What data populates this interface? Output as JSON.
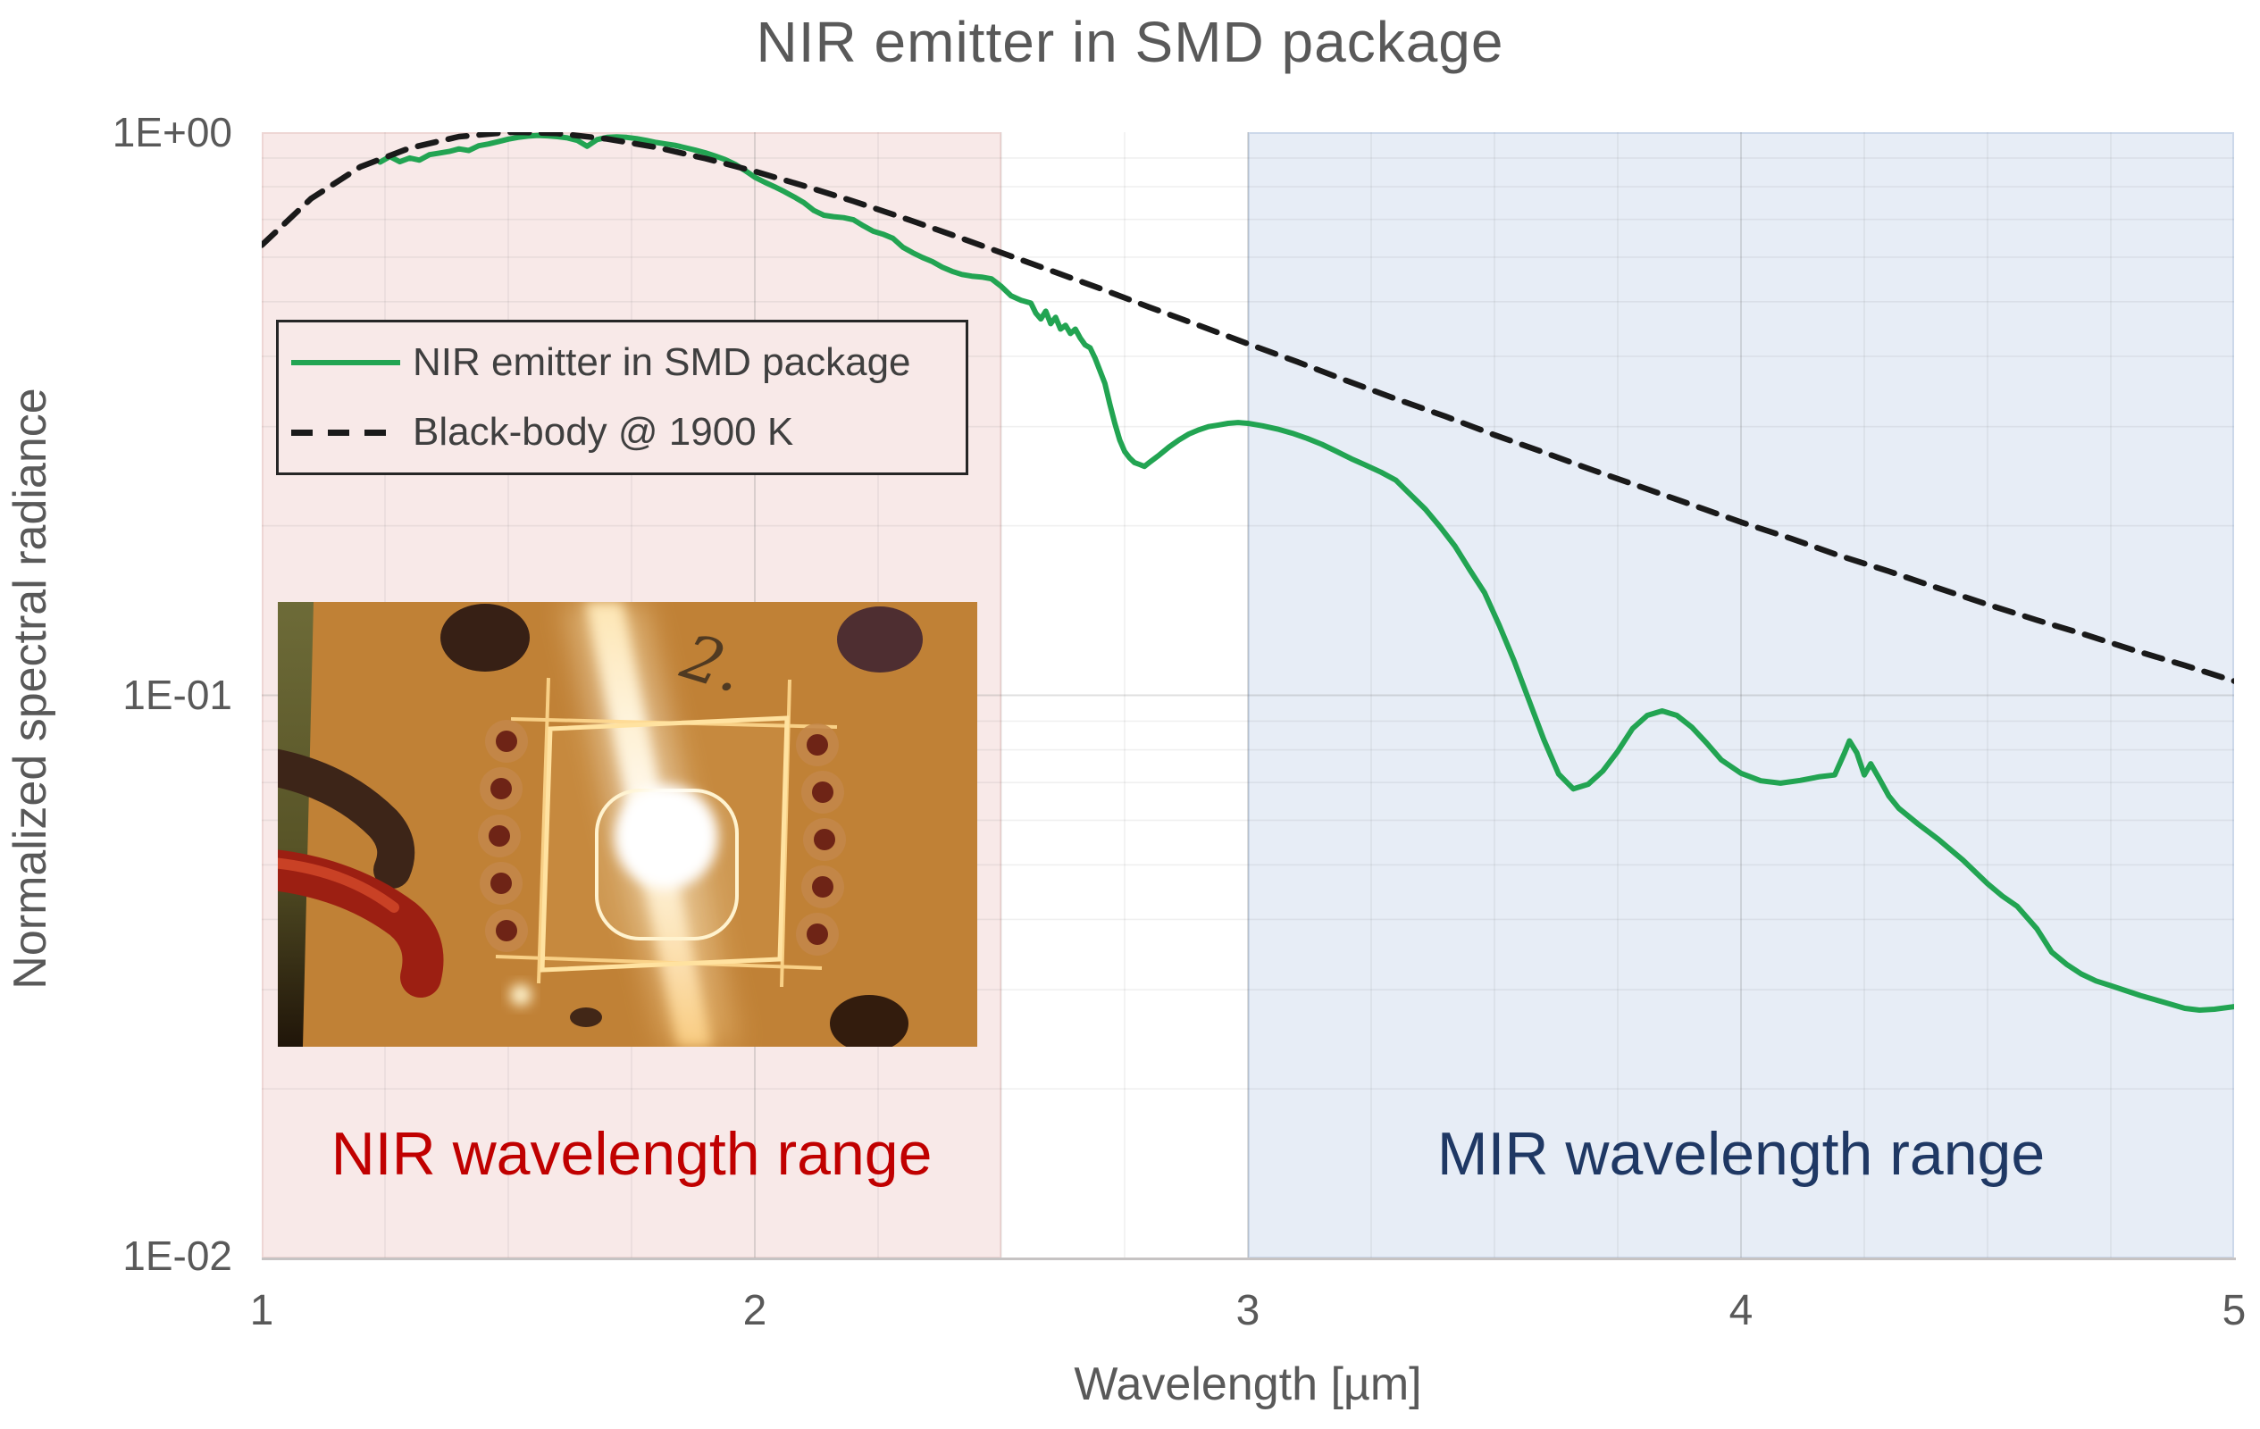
{
  "title": "NIR emitter in SMD package",
  "y_axis": {
    "title": "Normalized spectral radiance",
    "ticks": [
      "1E+00",
      "1E-01",
      "1E-02"
    ]
  },
  "x_axis": {
    "title": "Wavelength [µm]",
    "ticks": [
      "1",
      "2",
      "3",
      "4",
      "5"
    ]
  },
  "legend": {
    "items": [
      {
        "label": "NIR emitter in SMD package",
        "style": "solid",
        "color": "#22a452"
      },
      {
        "label": "Black-body @ 1900 K",
        "style": "dashed",
        "color": "#1a1a1a"
      }
    ]
  },
  "regions": {
    "nir": {
      "label": "NIR wavelength range",
      "x_range": [
        1.0,
        2.5
      ],
      "fill": "#f8e9e8",
      "label_color": "#c00000"
    },
    "mir": {
      "label": "MIR wavelength range",
      "x_range": [
        3.0,
        5.0
      ],
      "fill": "#e7edf6",
      "label_color": "#1f3864"
    }
  },
  "inset_photo": {
    "description": "Photograph of the glowing NIR emitter chip in its SMD package on a PCB, with a bright white-hot center, diagonal lens flare, scribe lines forming a square, solder pad rows, mounting holes and a red wire",
    "handwriting": "2."
  },
  "chart_data": {
    "type": "line",
    "title": "NIR emitter in SMD package",
    "xlabel": "Wavelength [µm]",
    "ylabel": "Normalized spectral radiance",
    "x_range": [
      1,
      5
    ],
    "y_scale": "log",
    "y_max": 1,
    "y_decades": 2,
    "ylim": [
      0.01,
      1.0
    ],
    "grid": {
      "x_minor_step": 0.25,
      "x_major": [
        2,
        3,
        4
      ],
      "minor_color": "rgba(110,110,110,0.10)",
      "major_color": "rgba(110,110,110,0.22)"
    },
    "annotations": [
      {
        "text": "NIR wavelength range",
        "x_range": [
          1.0,
          2.5
        ]
      },
      {
        "text": "MIR wavelength range",
        "x_range": [
          3.0,
          5.0
        ]
      }
    ],
    "series": [
      {
        "name": "NIR emitter in SMD package",
        "color": "#22a452",
        "style": "solid",
        "width": 6,
        "points": [
          [
            1.24,
            0.885
          ],
          [
            1.26,
            0.905
          ],
          [
            1.28,
            0.886
          ],
          [
            1.3,
            0.9
          ],
          [
            1.32,
            0.892
          ],
          [
            1.34,
            0.912
          ],
          [
            1.36,
            0.918
          ],
          [
            1.38,
            0.924
          ],
          [
            1.4,
            0.934
          ],
          [
            1.42,
            0.928
          ],
          [
            1.44,
            0.946
          ],
          [
            1.46,
            0.953
          ],
          [
            1.48,
            0.962
          ],
          [
            1.5,
            0.972
          ],
          [
            1.52,
            0.979
          ],
          [
            1.54,
            0.984
          ],
          [
            1.56,
            0.987
          ],
          [
            1.58,
            0.985
          ],
          [
            1.6,
            0.982
          ],
          [
            1.62,
            0.977
          ],
          [
            1.64,
            0.967
          ],
          [
            1.66,
            0.944
          ],
          [
            1.68,
            0.97
          ],
          [
            1.7,
            0.979
          ],
          [
            1.72,
            0.981
          ],
          [
            1.74,
            0.979
          ],
          [
            1.76,
            0.974
          ],
          [
            1.78,
            0.967
          ],
          [
            1.8,
            0.959
          ],
          [
            1.82,
            0.953
          ],
          [
            1.84,
            0.947
          ],
          [
            1.86,
            0.938
          ],
          [
            1.88,
            0.929
          ],
          [
            1.9,
            0.919
          ],
          [
            1.92,
            0.907
          ],
          [
            1.94,
            0.894
          ],
          [
            1.96,
            0.877
          ],
          [
            1.98,
            0.855
          ],
          [
            2.0,
            0.832
          ],
          [
            2.02,
            0.815
          ],
          [
            2.04,
            0.8
          ],
          [
            2.06,
            0.784
          ],
          [
            2.08,
            0.767
          ],
          [
            2.1,
            0.749
          ],
          [
            2.12,
            0.726
          ],
          [
            2.14,
            0.712
          ],
          [
            2.16,
            0.708
          ],
          [
            2.18,
            0.705
          ],
          [
            2.2,
            0.699
          ],
          [
            2.22,
            0.682
          ],
          [
            2.24,
            0.667
          ],
          [
            2.26,
            0.659
          ],
          [
            2.28,
            0.648
          ],
          [
            2.3,
            0.625
          ],
          [
            2.32,
            0.611
          ],
          [
            2.34,
            0.599
          ],
          [
            2.36,
            0.589
          ],
          [
            2.38,
            0.576
          ],
          [
            2.4,
            0.566
          ],
          [
            2.42,
            0.559
          ],
          [
            2.44,
            0.555
          ],
          [
            2.46,
            0.553
          ],
          [
            2.48,
            0.549
          ],
          [
            2.5,
            0.532
          ],
          [
            2.52,
            0.512
          ],
          [
            2.54,
            0.503
          ],
          [
            2.56,
            0.497
          ],
          [
            2.57,
            0.477
          ],
          [
            2.58,
            0.466
          ],
          [
            2.59,
            0.481
          ],
          [
            2.6,
            0.457
          ],
          [
            2.61,
            0.469
          ],
          [
            2.62,
            0.447
          ],
          [
            2.63,
            0.454
          ],
          [
            2.64,
            0.439
          ],
          [
            2.65,
            0.447
          ],
          [
            2.66,
            0.431
          ],
          [
            2.67,
            0.419
          ],
          [
            2.68,
            0.414
          ],
          [
            2.69,
            0.397
          ],
          [
            2.7,
            0.377
          ],
          [
            2.71,
            0.358
          ],
          [
            2.72,
            0.329
          ],
          [
            2.73,
            0.304
          ],
          [
            2.74,
            0.284
          ],
          [
            2.75,
            0.271
          ],
          [
            2.76,
            0.264
          ],
          [
            2.77,
            0.259
          ],
          [
            2.78,
            0.257
          ],
          [
            2.79,
            0.255
          ],
          [
            2.8,
            0.259
          ],
          [
            2.82,
            0.267
          ],
          [
            2.84,
            0.276
          ],
          [
            2.86,
            0.284
          ],
          [
            2.88,
            0.291
          ],
          [
            2.9,
            0.296
          ],
          [
            2.92,
            0.3
          ],
          [
            2.94,
            0.302
          ],
          [
            2.96,
            0.304
          ],
          [
            2.98,
            0.305
          ],
          [
            3.0,
            0.304
          ],
          [
            3.03,
            0.301
          ],
          [
            3.06,
            0.297
          ],
          [
            3.09,
            0.292
          ],
          [
            3.12,
            0.286
          ],
          [
            3.15,
            0.279
          ],
          [
            3.18,
            0.271
          ],
          [
            3.21,
            0.263
          ],
          [
            3.24,
            0.256
          ],
          [
            3.27,
            0.249
          ],
          [
            3.3,
            0.241
          ],
          [
            3.33,
            0.227
          ],
          [
            3.36,
            0.214
          ],
          [
            3.39,
            0.199
          ],
          [
            3.42,
            0.184
          ],
          [
            3.45,
            0.167
          ],
          [
            3.48,
            0.152
          ],
          [
            3.51,
            0.133
          ],
          [
            3.54,
            0.115
          ],
          [
            3.57,
            0.098
          ],
          [
            3.6,
            0.0835
          ],
          [
            3.63,
            0.0725
          ],
          [
            3.66,
            0.0682
          ],
          [
            3.69,
            0.0695
          ],
          [
            3.72,
            0.0734
          ],
          [
            3.75,
            0.0795
          ],
          [
            3.78,
            0.0873
          ],
          [
            3.81,
            0.0921
          ],
          [
            3.84,
            0.0938
          ],
          [
            3.87,
            0.0921
          ],
          [
            3.9,
            0.0878
          ],
          [
            3.93,
            0.0823
          ],
          [
            3.96,
            0.0768
          ],
          [
            4.0,
            0.0727
          ],
          [
            4.04,
            0.0705
          ],
          [
            4.08,
            0.0698
          ],
          [
            4.12,
            0.0706
          ],
          [
            4.16,
            0.0717
          ],
          [
            4.19,
            0.0722
          ],
          [
            4.21,
            0.079
          ],
          [
            4.22,
            0.083
          ],
          [
            4.235,
            0.079
          ],
          [
            4.25,
            0.0722
          ],
          [
            4.263,
            0.0756
          ],
          [
            4.28,
            0.0712
          ],
          [
            4.3,
            0.0662
          ],
          [
            4.32,
            0.063
          ],
          [
            4.36,
            0.059
          ],
          [
            4.4,
            0.0555
          ],
          [
            4.45,
            0.051
          ],
          [
            4.5,
            0.0463
          ],
          [
            4.53,
            0.044
          ],
          [
            4.56,
            0.0422
          ],
          [
            4.6,
            0.0385
          ],
          [
            4.63,
            0.035
          ],
          [
            4.66,
            0.0333
          ],
          [
            4.69,
            0.032
          ],
          [
            4.72,
            0.0311
          ],
          [
            4.75,
            0.0305
          ],
          [
            4.78,
            0.0299
          ],
          [
            4.81,
            0.0293
          ],
          [
            4.84,
            0.0288
          ],
          [
            4.87,
            0.0283
          ],
          [
            4.9,
            0.0278
          ],
          [
            4.93,
            0.0276
          ],
          [
            4.96,
            0.0277
          ],
          [
            5.0,
            0.028
          ]
        ]
      },
      {
        "name": "Black-body @ 1900 K",
        "color": "#1a1a1a",
        "style": "dashed",
        "width": 6.5,
        "points": [
          [
            1.0,
            0.63
          ],
          [
            1.1,
            0.762
          ],
          [
            1.2,
            0.868
          ],
          [
            1.3,
            0.937
          ],
          [
            1.4,
            0.982
          ],
          [
            1.5,
            0.9995
          ],
          [
            1.525,
            1.0
          ],
          [
            1.6,
            0.995
          ],
          [
            1.7,
            0.973
          ],
          [
            1.8,
            0.94
          ],
          [
            1.9,
            0.898
          ],
          [
            2.0,
            0.852
          ],
          [
            2.1,
            0.803
          ],
          [
            2.2,
            0.754
          ],
          [
            2.3,
            0.705
          ],
          [
            2.4,
            0.657
          ],
          [
            2.5,
            0.611
          ],
          [
            2.6,
            0.568
          ],
          [
            2.7,
            0.528
          ],
          [
            2.8,
            0.489
          ],
          [
            2.9,
            0.454
          ],
          [
            3.0,
            0.421
          ],
          [
            3.1,
            0.391
          ],
          [
            3.2,
            0.362
          ],
          [
            3.3,
            0.336
          ],
          [
            3.4,
            0.313
          ],
          [
            3.5,
            0.29
          ],
          [
            3.6,
            0.27
          ],
          [
            3.7,
            0.251
          ],
          [
            3.8,
            0.234
          ],
          [
            3.9,
            0.218
          ],
          [
            4.0,
            0.203
          ],
          [
            4.1,
            0.19
          ],
          [
            4.2,
            0.177
          ],
          [
            4.3,
            0.166
          ],
          [
            4.4,
            0.155
          ],
          [
            4.5,
            0.145
          ],
          [
            4.6,
            0.136
          ],
          [
            4.7,
            0.128
          ],
          [
            4.8,
            0.12
          ],
          [
            4.9,
            0.113
          ],
          [
            5.0,
            0.106
          ]
        ]
      }
    ]
  }
}
